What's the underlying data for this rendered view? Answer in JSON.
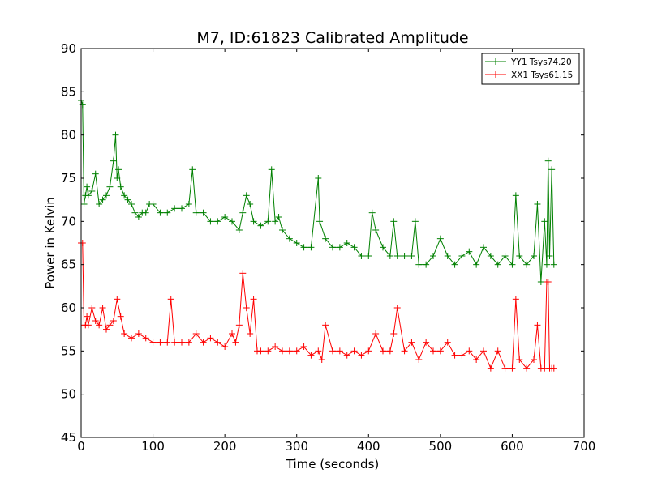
{
  "chart_data": {
    "type": "line",
    "title": "M7, ID:61823 Calibrated Amplitude",
    "xlabel": "Time (seconds)",
    "ylabel": "Power in Kelvin",
    "xlim": [
      0,
      700
    ],
    "ylim": [
      45,
      90
    ],
    "xticks": [
      0,
      100,
      200,
      300,
      400,
      500,
      600,
      700
    ],
    "yticks": [
      45,
      50,
      55,
      60,
      65,
      70,
      75,
      80,
      85,
      90
    ],
    "grid": false,
    "legend_position": "top-right",
    "marker": "+",
    "series": [
      {
        "name": "YY1 Tsys74.20",
        "color": "#008000",
        "x": [
          0,
          2,
          4,
          6,
          8,
          10,
          15,
          20,
          25,
          30,
          35,
          40,
          45,
          48,
          50,
          52,
          55,
          60,
          65,
          70,
          75,
          80,
          85,
          90,
          95,
          100,
          110,
          120,
          130,
          140,
          150,
          155,
          160,
          170,
          180,
          190,
          200,
          210,
          220,
          225,
          230,
          235,
          240,
          250,
          260,
          265,
          270,
          275,
          280,
          290,
          300,
          310,
          320,
          330,
          332,
          340,
          350,
          360,
          370,
          380,
          390,
          400,
          405,
          410,
          420,
          430,
          435,
          440,
          450,
          460,
          465,
          470,
          480,
          490,
          500,
          510,
          520,
          530,
          540,
          550,
          560,
          570,
          580,
          590,
          600,
          605,
          610,
          620,
          630,
          635,
          640,
          645,
          648,
          650,
          652,
          655,
          658
        ],
        "y": [
          84,
          83.5,
          72,
          73,
          74,
          73,
          73.5,
          75.5,
          72,
          72.5,
          73,
          74,
          77,
          80,
          75,
          76,
          74,
          73,
          72.5,
          72,
          71,
          70.5,
          71,
          71,
          72,
          72,
          71,
          71,
          71.5,
          71.5,
          72,
          76,
          71,
          71,
          70,
          70,
          70.5,
          70,
          69,
          71,
          73,
          72,
          70,
          69.5,
          70,
          76,
          70,
          70.5,
          69,
          68,
          67.5,
          67,
          67,
          75,
          70,
          68,
          67,
          67,
          67.5,
          67,
          66,
          66,
          71,
          69,
          67,
          66,
          70,
          66,
          66,
          66,
          70,
          65,
          65,
          66,
          68,
          66,
          65,
          66,
          66.5,
          65,
          67,
          66,
          65,
          66,
          65,
          73,
          66,
          65,
          66,
          72,
          63,
          70,
          65,
          77,
          66,
          76,
          65
        ]
      },
      {
        "name": "XX1 Tsys61.15",
        "color": "#ff0000",
        "x": [
          0,
          2,
          4,
          6,
          8,
          10,
          15,
          20,
          25,
          30,
          35,
          40,
          45,
          50,
          55,
          60,
          70,
          80,
          90,
          100,
          110,
          120,
          125,
          130,
          140,
          150,
          160,
          170,
          180,
          190,
          200,
          210,
          215,
          220,
          225,
          230,
          235,
          240,
          245,
          250,
          260,
          270,
          280,
          290,
          300,
          310,
          320,
          330,
          335,
          340,
          350,
          360,
          370,
          380,
          390,
          400,
          410,
          420,
          430,
          435,
          440,
          450,
          460,
          470,
          480,
          490,
          500,
          510,
          520,
          530,
          540,
          550,
          560,
          570,
          580,
          590,
          600,
          605,
          610,
          620,
          630,
          635,
          640,
          645,
          648,
          650,
          652,
          655,
          658
        ],
        "y": [
          67.5,
          67.5,
          58,
          58,
          59,
          58,
          60,
          58.5,
          58,
          60,
          57.5,
          58,
          58.5,
          61,
          59,
          57,
          56.5,
          57,
          56.5,
          56,
          56,
          56,
          61,
          56,
          56,
          56,
          57,
          56,
          56.5,
          56,
          55.5,
          57,
          56,
          58,
          64,
          60,
          57,
          61,
          55,
          55,
          55,
          55.5,
          55,
          55,
          55,
          55.5,
          54.5,
          55,
          54,
          58,
          55,
          55,
          54.5,
          55,
          54.5,
          55,
          57,
          55,
          55,
          57,
          60,
          55,
          56,
          54,
          56,
          55,
          55,
          56,
          54.5,
          54.5,
          55,
          54,
          55,
          53,
          55,
          53,
          53,
          61,
          54,
          53,
          54,
          58,
          53,
          53,
          63,
          63,
          53,
          53,
          53
        ]
      }
    ]
  }
}
